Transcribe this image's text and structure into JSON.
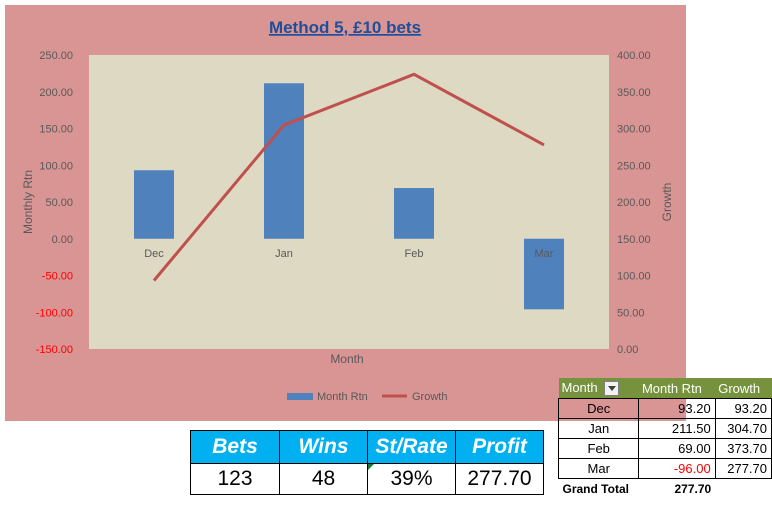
{
  "chart_data": {
    "type": "bar",
    "title": "Method 5, £10 bets",
    "categories": [
      "Dec",
      "Jan",
      "Feb",
      "Mar"
    ],
    "series": [
      {
        "name": "Month Rtn",
        "type": "bar",
        "axis": "left",
        "values": [
          93.2,
          211.5,
          69.0,
          -96.0
        ],
        "color": "#4f81bd"
      },
      {
        "name": "Growth",
        "type": "line",
        "axis": "right",
        "values": [
          93.2,
          304.7,
          373.7,
          277.7
        ],
        "color": "#c0504d"
      }
    ],
    "xlabel": "Month",
    "ylabel": "Monthly Rtn",
    "y2label": "Growth",
    "ylim": [
      -150,
      250
    ],
    "y2lim": [
      0,
      400
    ],
    "yticks": [
      "250.00",
      "200.00",
      "150.00",
      "100.00",
      "50.00",
      "0.00",
      "-50.00",
      "-100.00",
      "-150.00"
    ],
    "y2ticks": [
      "400.00",
      "350.00",
      "300.00",
      "250.00",
      "200.00",
      "150.00",
      "100.00",
      "50.00",
      "0.00"
    ],
    "legend": "bottom",
    "grid": false
  },
  "colors": {
    "chart_bg": "#d99594",
    "plot_bg": "#ddd9c3",
    "bar": "#4f81bd",
    "line": "#c0504d",
    "header_blue": "#00b0f0",
    "header_green": "#76923c",
    "negative": "#ff0000"
  },
  "stats": {
    "headers": [
      "Bets",
      "Wins",
      "St/Rate",
      "Profit"
    ],
    "values": [
      "123",
      "48",
      "39%",
      "277.70"
    ]
  },
  "pivot": {
    "headers": [
      "Month",
      "Month Rtn",
      "Growth"
    ],
    "rows": [
      {
        "month": "Dec",
        "rtn": "93.20",
        "growth": "93.20"
      },
      {
        "month": "Jan",
        "rtn": "211.50",
        "growth": "304.70"
      },
      {
        "month": "Feb",
        "rtn": "69.00",
        "growth": "373.70"
      },
      {
        "month": "Mar",
        "rtn": "-96.00",
        "growth": "277.70"
      }
    ],
    "grand_total_label": "Grand Total",
    "grand_total_value": "277.70"
  }
}
